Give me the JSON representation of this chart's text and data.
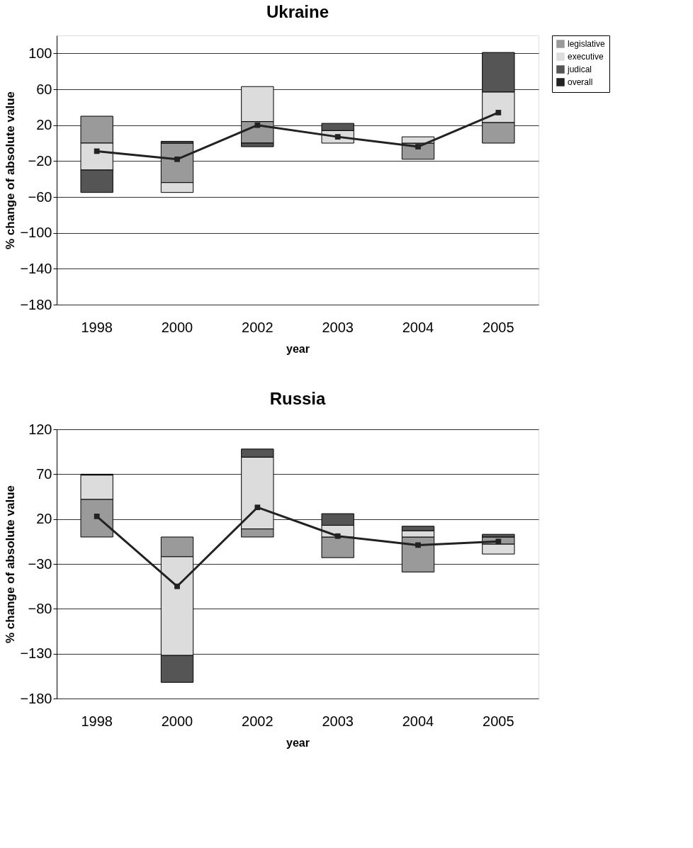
{
  "chart_data": [
    {
      "type": "bar",
      "stacked": true,
      "title": "Ukraine",
      "xlabel": "year",
      "ylabel": "% change of absolute value",
      "categories": [
        "1998",
        "2000",
        "2002",
        "2003",
        "2004",
        "2005"
      ],
      "ylim": [
        -180,
        120
      ],
      "yticks": [
        -180,
        -140,
        -100,
        -60,
        -20,
        20,
        60,
        100
      ],
      "grid": "y",
      "legend": "right",
      "marker": "square",
      "line_style": "solid",
      "series": [
        {
          "name": "legislative",
          "color": "#9a9a9a",
          "values": [
            30,
            -44,
            24,
            null,
            -18,
            23
          ]
        },
        {
          "name": "executive",
          "color": "#dcdcdc",
          "values": [
            -30,
            -11,
            39,
            14,
            7,
            34
          ]
        },
        {
          "name": "judical",
          "color": "#555555",
          "values": [
            -25,
            2,
            -4,
            8,
            null,
            44
          ]
        },
        {
          "name": "overall",
          "type": "line",
          "color": "#222222",
          "values": [
            -9,
            -18,
            20,
            7,
            -4,
            34
          ]
        }
      ]
    },
    {
      "type": "bar",
      "stacked": true,
      "title": "Russia",
      "xlabel": "year",
      "ylabel": "% change of absolute value",
      "categories": [
        "1998",
        "2000",
        "2002",
        "2003",
        "2004",
        "2005"
      ],
      "ylim": [
        -180,
        120
      ],
      "yticks": [
        -180,
        -130,
        -80,
        -30,
        20,
        70,
        120
      ],
      "grid": "y",
      "legend": "right",
      "marker": "square",
      "line_style": "solid",
      "series": [
        {
          "name": "legislative",
          "color": "#9a9a9a",
          "values": [
            42,
            -22,
            9,
            -23,
            -39,
            -8
          ]
        },
        {
          "name": "executive",
          "color": "#dcdcdc",
          "values": [
            27,
            -110,
            80,
            13,
            7,
            -11
          ]
        },
        {
          "name": "judical",
          "color": "#555555",
          "values": [
            1,
            -30,
            9,
            13,
            5,
            3
          ]
        },
        {
          "name": "overall",
          "type": "line",
          "color": "#222222",
          "values": [
            23,
            -55,
            33,
            1,
            -9,
            -5
          ]
        }
      ]
    }
  ]
}
